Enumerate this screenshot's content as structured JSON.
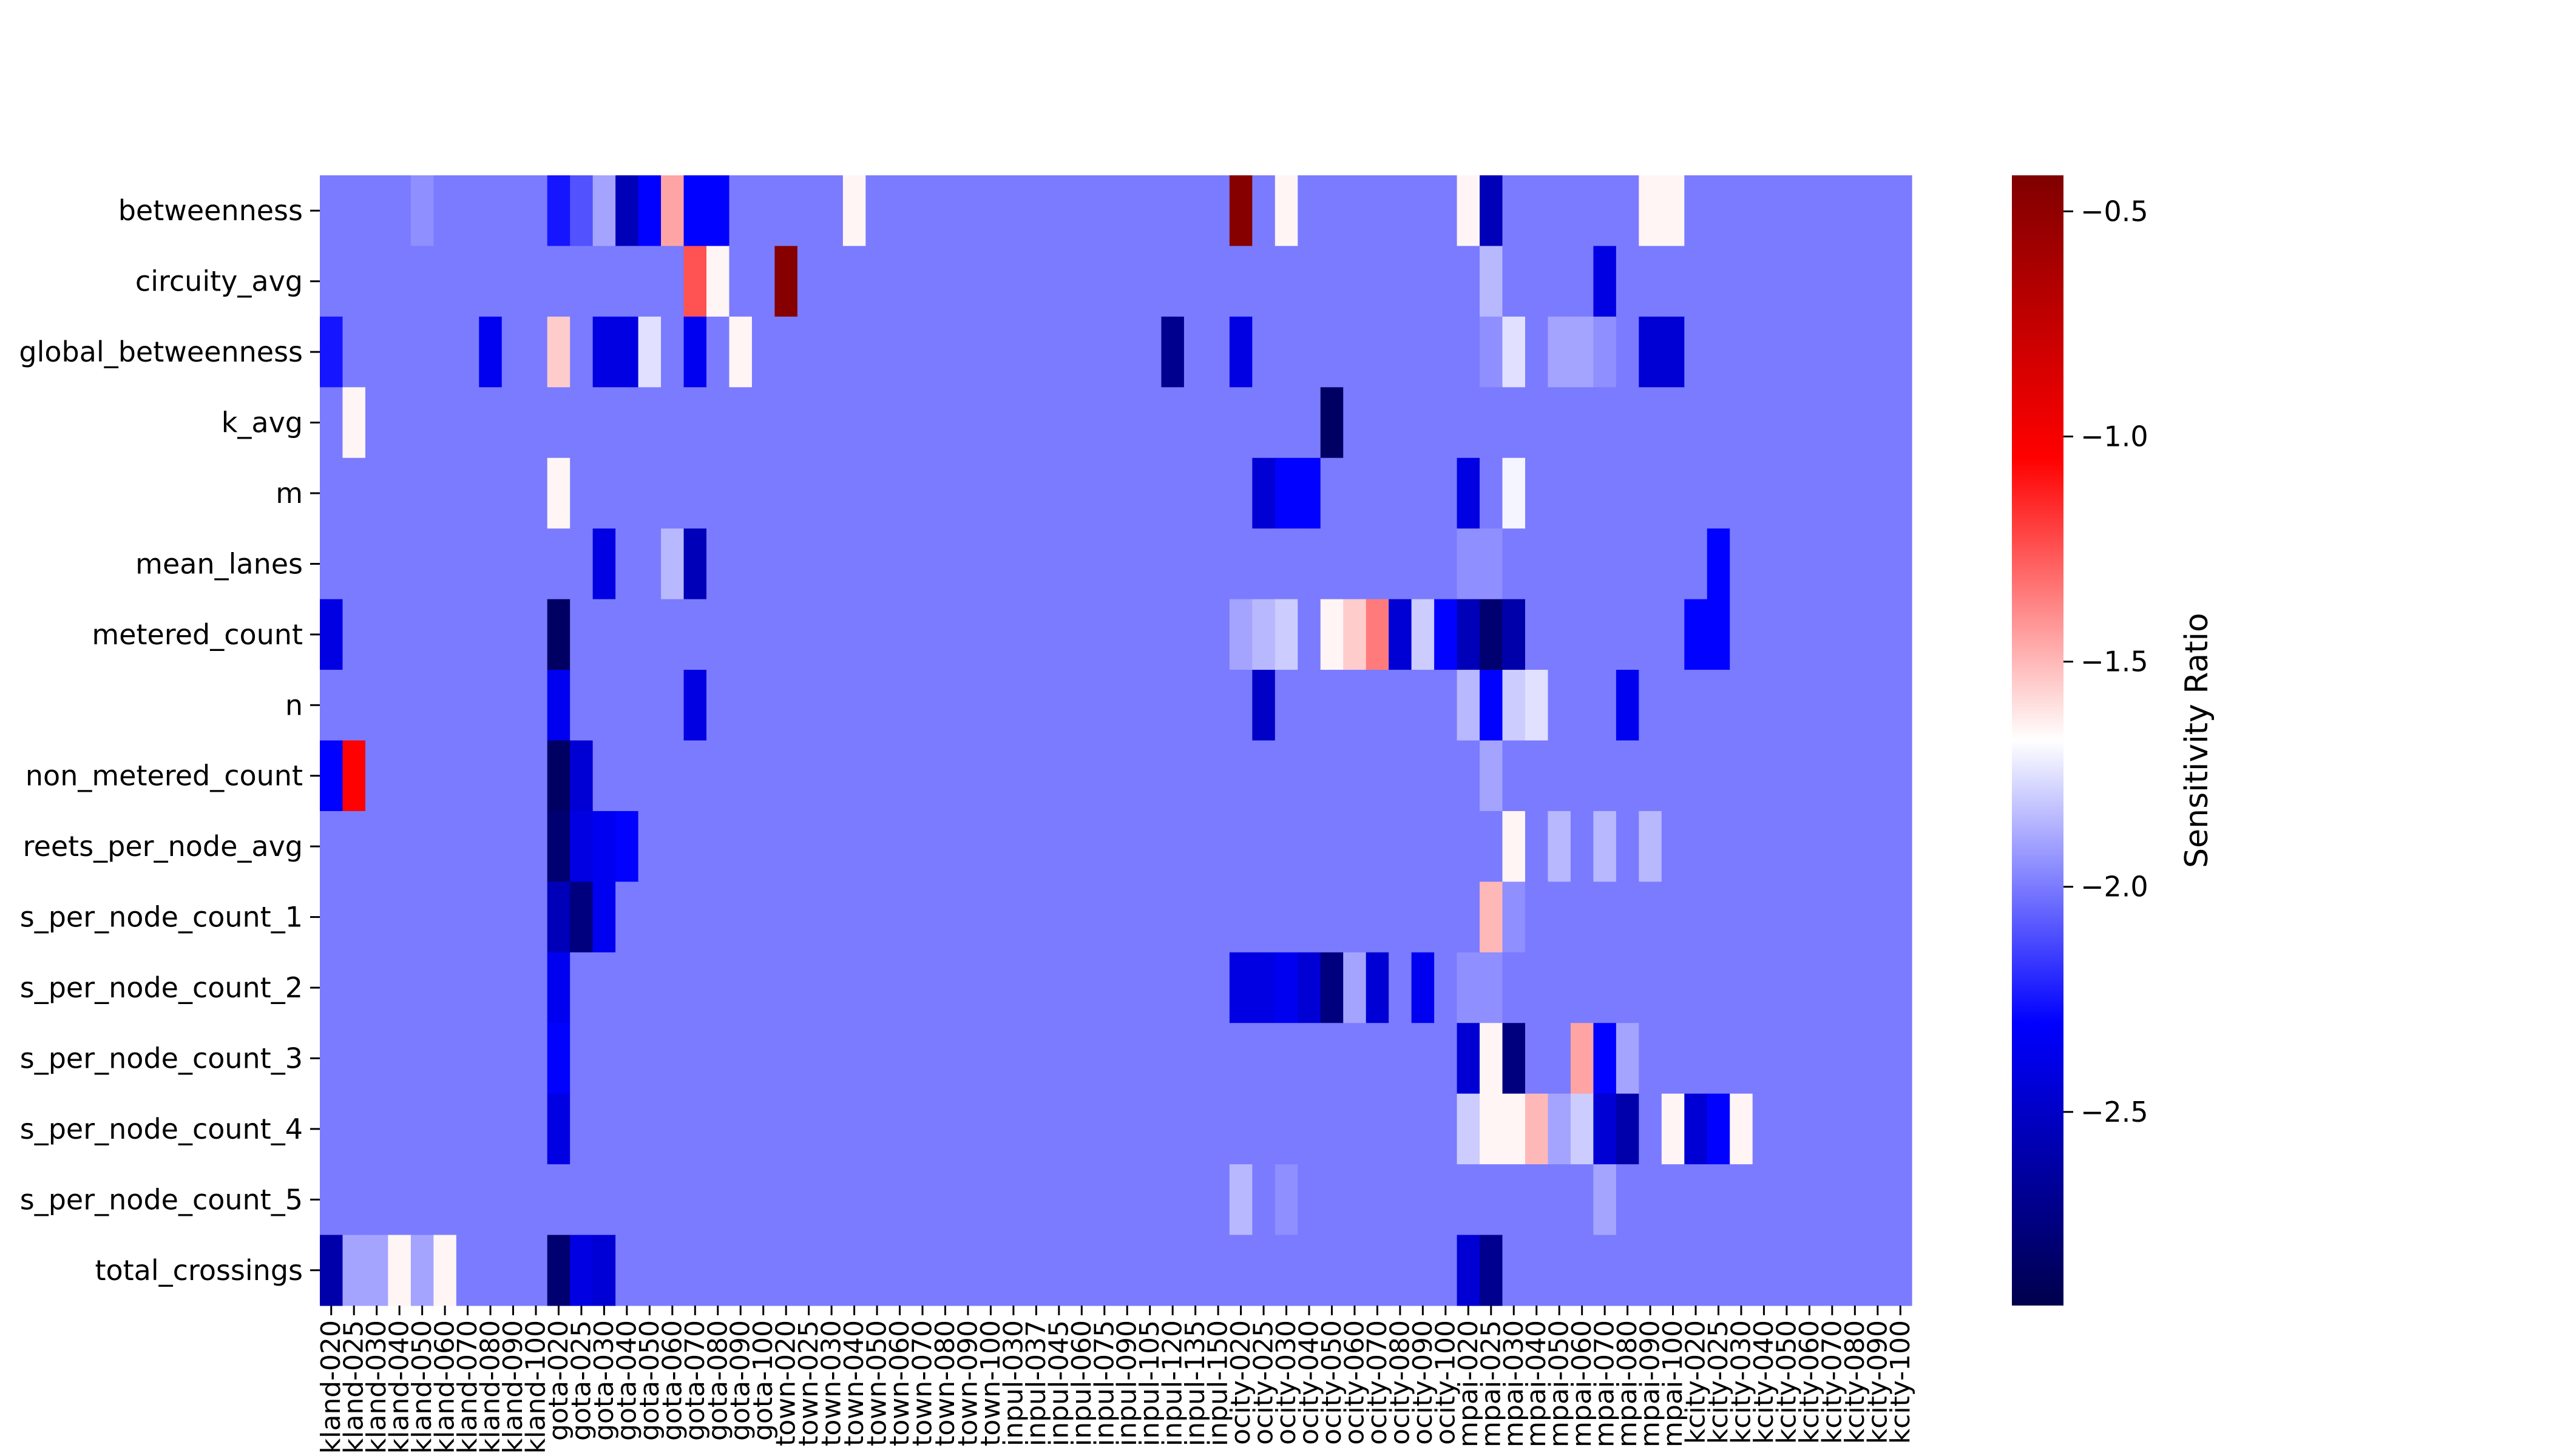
{
  "chart_data": {
    "type": "heatmap",
    "rows": [
      "betweenness",
      "circuity_avg",
      "global_betweenness",
      "k_avg",
      "m",
      "mean_lanes",
      "metered_count",
      "n",
      "non_metered_count",
      "reets_per_node_avg",
      "s_per_node_count_1",
      "s_per_node_count_2",
      "s_per_node_count_3",
      "s_per_node_count_4",
      "s_per_node_count_5",
      "total_crossings"
    ],
    "columns": [
      "kland-020",
      "kland-025",
      "kland-030",
      "kland-040",
      "kland-050",
      "kland-060",
      "kland-070",
      "kland-080",
      "kland-090",
      "kland-100",
      "gota-020",
      "gota-025",
      "gota-030",
      "gota-040",
      "gota-050",
      "gota-060",
      "gota-070",
      "gota-080",
      "gota-090",
      "gota-100",
      "town-020",
      "town-025",
      "town-030",
      "town-040",
      "town-050",
      "town-060",
      "town-070",
      "town-080",
      "town-090",
      "town-100",
      "inpul-030",
      "inpul-037",
      "inpul-045",
      "inpul-060",
      "inpul-075",
      "inpul-090",
      "inpul-105",
      "inpul-120",
      "inpul-135",
      "inpul-150",
      "ocity-020",
      "ocity-025",
      "ocity-030",
      "ocity-040",
      "ocity-050",
      "ocity-060",
      "ocity-070",
      "ocity-080",
      "ocity-090",
      "ocity-100",
      "mpai-020",
      "mpai-025",
      "mpai-030",
      "mpai-040",
      "mpai-050",
      "mpai-060",
      "mpai-070",
      "mpai-080",
      "mpai-090",
      "mpai-100",
      "kcity-020",
      "kcity-025",
      "kcity-030",
      "kcity-040",
      "kcity-050",
      "kcity-060",
      "kcity-070",
      "kcity-080",
      "kcity-090",
      "kcity-100"
    ],
    "base_value": -2.0,
    "cell_overrides": [
      [
        0,
        4,
        -1.95
      ],
      [
        0,
        10,
        -2.25
      ],
      [
        0,
        11,
        -2.1
      ],
      [
        0,
        12,
        -1.9
      ],
      [
        0,
        13,
        -2.55
      ],
      [
        0,
        14,
        -2.3
      ],
      [
        0,
        15,
        -1.45
      ],
      [
        0,
        16,
        -2.3
      ],
      [
        0,
        17,
        -2.3
      ],
      [
        0,
        23,
        -1.65
      ],
      [
        0,
        40,
        -0.45
      ],
      [
        0,
        42,
        -1.65
      ],
      [
        0,
        50,
        -1.65
      ],
      [
        0,
        51,
        -2.55
      ],
      [
        0,
        58,
        -1.65
      ],
      [
        0,
        59,
        -1.65
      ],
      [
        1,
        16,
        -1.25
      ],
      [
        1,
        17,
        -1.65
      ],
      [
        1,
        20,
        -0.45
      ],
      [
        1,
        51,
        -1.85
      ],
      [
        1,
        56,
        -2.4
      ],
      [
        2,
        0,
        -2.25
      ],
      [
        2,
        7,
        -2.35
      ],
      [
        2,
        10,
        -1.55
      ],
      [
        2,
        12,
        -2.4
      ],
      [
        2,
        13,
        -2.4
      ],
      [
        2,
        14,
        -1.75
      ],
      [
        2,
        16,
        -2.35
      ],
      [
        2,
        18,
        -1.65
      ],
      [
        2,
        37,
        -2.7
      ],
      [
        2,
        40,
        -2.4
      ],
      [
        2,
        51,
        -1.95
      ],
      [
        2,
        52,
        -1.75
      ],
      [
        2,
        53,
        -2.0
      ],
      [
        2,
        54,
        -1.9
      ],
      [
        2,
        55,
        -1.9
      ],
      [
        2,
        56,
        -1.95
      ],
      [
        2,
        58,
        -2.45
      ],
      [
        2,
        59,
        -2.45
      ],
      [
        3,
        1,
        -1.65
      ],
      [
        3,
        44,
        -2.85
      ],
      [
        4,
        10,
        -1.65
      ],
      [
        4,
        41,
        -2.45
      ],
      [
        4,
        42,
        -2.3
      ],
      [
        4,
        43,
        -2.3
      ],
      [
        4,
        50,
        -2.4
      ],
      [
        4,
        52,
        -1.7
      ],
      [
        5,
        12,
        -2.4
      ],
      [
        5,
        15,
        -1.85
      ],
      [
        5,
        16,
        -2.55
      ],
      [
        5,
        50,
        -1.95
      ],
      [
        5,
        51,
        -1.95
      ],
      [
        5,
        61,
        -2.3
      ],
      [
        6,
        0,
        -2.4
      ],
      [
        6,
        10,
        -2.85
      ],
      [
        6,
        40,
        -1.9
      ],
      [
        6,
        41,
        -1.85
      ],
      [
        6,
        42,
        -1.8
      ],
      [
        6,
        43,
        -2.0
      ],
      [
        6,
        44,
        -1.65
      ],
      [
        6,
        45,
        -1.55
      ],
      [
        6,
        46,
        -1.35
      ],
      [
        6,
        47,
        -2.45
      ],
      [
        6,
        48,
        -1.8
      ],
      [
        6,
        49,
        -2.3
      ],
      [
        6,
        50,
        -2.55
      ],
      [
        6,
        51,
        -2.8
      ],
      [
        6,
        52,
        -2.6
      ],
      [
        6,
        60,
        -2.3
      ],
      [
        6,
        61,
        -2.3
      ],
      [
        7,
        10,
        -2.35
      ],
      [
        7,
        16,
        -2.4
      ],
      [
        7,
        41,
        -2.5
      ],
      [
        7,
        50,
        -1.85
      ],
      [
        7,
        51,
        -2.3
      ],
      [
        7,
        52,
        -1.8
      ],
      [
        7,
        53,
        -1.75
      ],
      [
        7,
        57,
        -2.35
      ],
      [
        8,
        0,
        -2.3
      ],
      [
        8,
        1,
        -1.05
      ],
      [
        8,
        10,
        -2.85
      ],
      [
        8,
        11,
        -2.45
      ],
      [
        8,
        51,
        -1.9
      ],
      [
        9,
        10,
        -2.8
      ],
      [
        9,
        11,
        -2.4
      ],
      [
        9,
        12,
        -2.35
      ],
      [
        9,
        13,
        -2.3
      ],
      [
        9,
        52,
        -1.65
      ],
      [
        9,
        54,
        -1.85
      ],
      [
        9,
        56,
        -1.85
      ],
      [
        9,
        58,
        -1.85
      ],
      [
        10,
        10,
        -2.55
      ],
      [
        10,
        11,
        -2.75
      ],
      [
        10,
        12,
        -2.35
      ],
      [
        10,
        51,
        -1.5
      ],
      [
        10,
        52,
        -1.95
      ],
      [
        11,
        10,
        -2.35
      ],
      [
        11,
        40,
        -2.4
      ],
      [
        11,
        41,
        -2.4
      ],
      [
        11,
        42,
        -2.35
      ],
      [
        11,
        43,
        -2.45
      ],
      [
        11,
        44,
        -2.75
      ],
      [
        11,
        45,
        -1.9
      ],
      [
        11,
        46,
        -2.45
      ],
      [
        11,
        48,
        -2.35
      ],
      [
        11,
        50,
        -1.95
      ],
      [
        11,
        51,
        -1.95
      ],
      [
        12,
        10,
        -2.3
      ],
      [
        12,
        50,
        -2.45
      ],
      [
        12,
        51,
        -1.65
      ],
      [
        12,
        52,
        -2.75
      ],
      [
        12,
        55,
        -1.45
      ],
      [
        12,
        56,
        -2.3
      ],
      [
        12,
        57,
        -1.9
      ],
      [
        13,
        10,
        -2.4
      ],
      [
        13,
        50,
        -1.8
      ],
      [
        13,
        51,
        -1.65
      ],
      [
        13,
        52,
        -1.65
      ],
      [
        13,
        53,
        -1.5
      ],
      [
        13,
        54,
        -1.9
      ],
      [
        13,
        55,
        -1.8
      ],
      [
        13,
        56,
        -2.45
      ],
      [
        13,
        57,
        -2.6
      ],
      [
        13,
        59,
        -1.65
      ],
      [
        13,
        60,
        -2.45
      ],
      [
        13,
        61,
        -2.3
      ],
      [
        13,
        62,
        -1.65
      ],
      [
        14,
        40,
        -1.85
      ],
      [
        14,
        42,
        -1.95
      ],
      [
        14,
        56,
        -1.9
      ],
      [
        15,
        0,
        -2.6
      ],
      [
        15,
        1,
        -1.9
      ],
      [
        15,
        2,
        -1.9
      ],
      [
        15,
        3,
        -1.65
      ],
      [
        15,
        4,
        -1.9
      ],
      [
        15,
        5,
        -1.65
      ],
      [
        15,
        10,
        -2.8
      ],
      [
        15,
        11,
        -2.4
      ],
      [
        15,
        12,
        -2.45
      ],
      [
        15,
        50,
        -2.45
      ],
      [
        15,
        51,
        -2.7
      ]
    ],
    "colorbar": {
      "label": "Sensitivity Ratio",
      "min": -2.93,
      "max": -0.42,
      "ticks": [
        -0.5,
        -1.0,
        -1.5,
        -2.0,
        -2.5
      ],
      "tick_labels": [
        "−0.5",
        "−1.0",
        "−1.5",
        "−2.0",
        "−2.5"
      ],
      "colormap": "seismic"
    }
  }
}
